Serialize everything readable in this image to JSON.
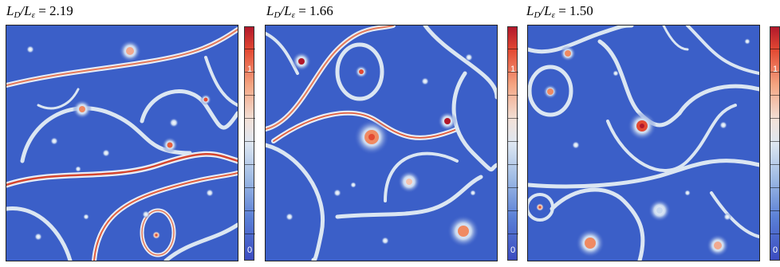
{
  "panels": [
    {
      "title_main": "L",
      "title_sub1": "D",
      "title_slash": "/L",
      "title_sub2": "ε",
      "title_value": " = 2.19",
      "cbar_top_label": "1",
      "cbar_bottom_label": "0"
    },
    {
      "title_main": "L",
      "title_sub1": "D",
      "title_slash": "/L",
      "title_sub2": "ε",
      "title_value": " = 1.66",
      "cbar_top_label": "1",
      "cbar_bottom_label": "0"
    },
    {
      "title_main": "L",
      "title_sub1": "D",
      "title_slash": "/L",
      "title_sub2": "ε",
      "title_value": " = 1.50",
      "cbar_top_label": "1",
      "cbar_bottom_label": "0"
    }
  ],
  "colors": {
    "background": "#3b5fc8",
    "filament": "#dbe6f2",
    "hot": "#e34a33",
    "peak": "#b2182b"
  }
}
